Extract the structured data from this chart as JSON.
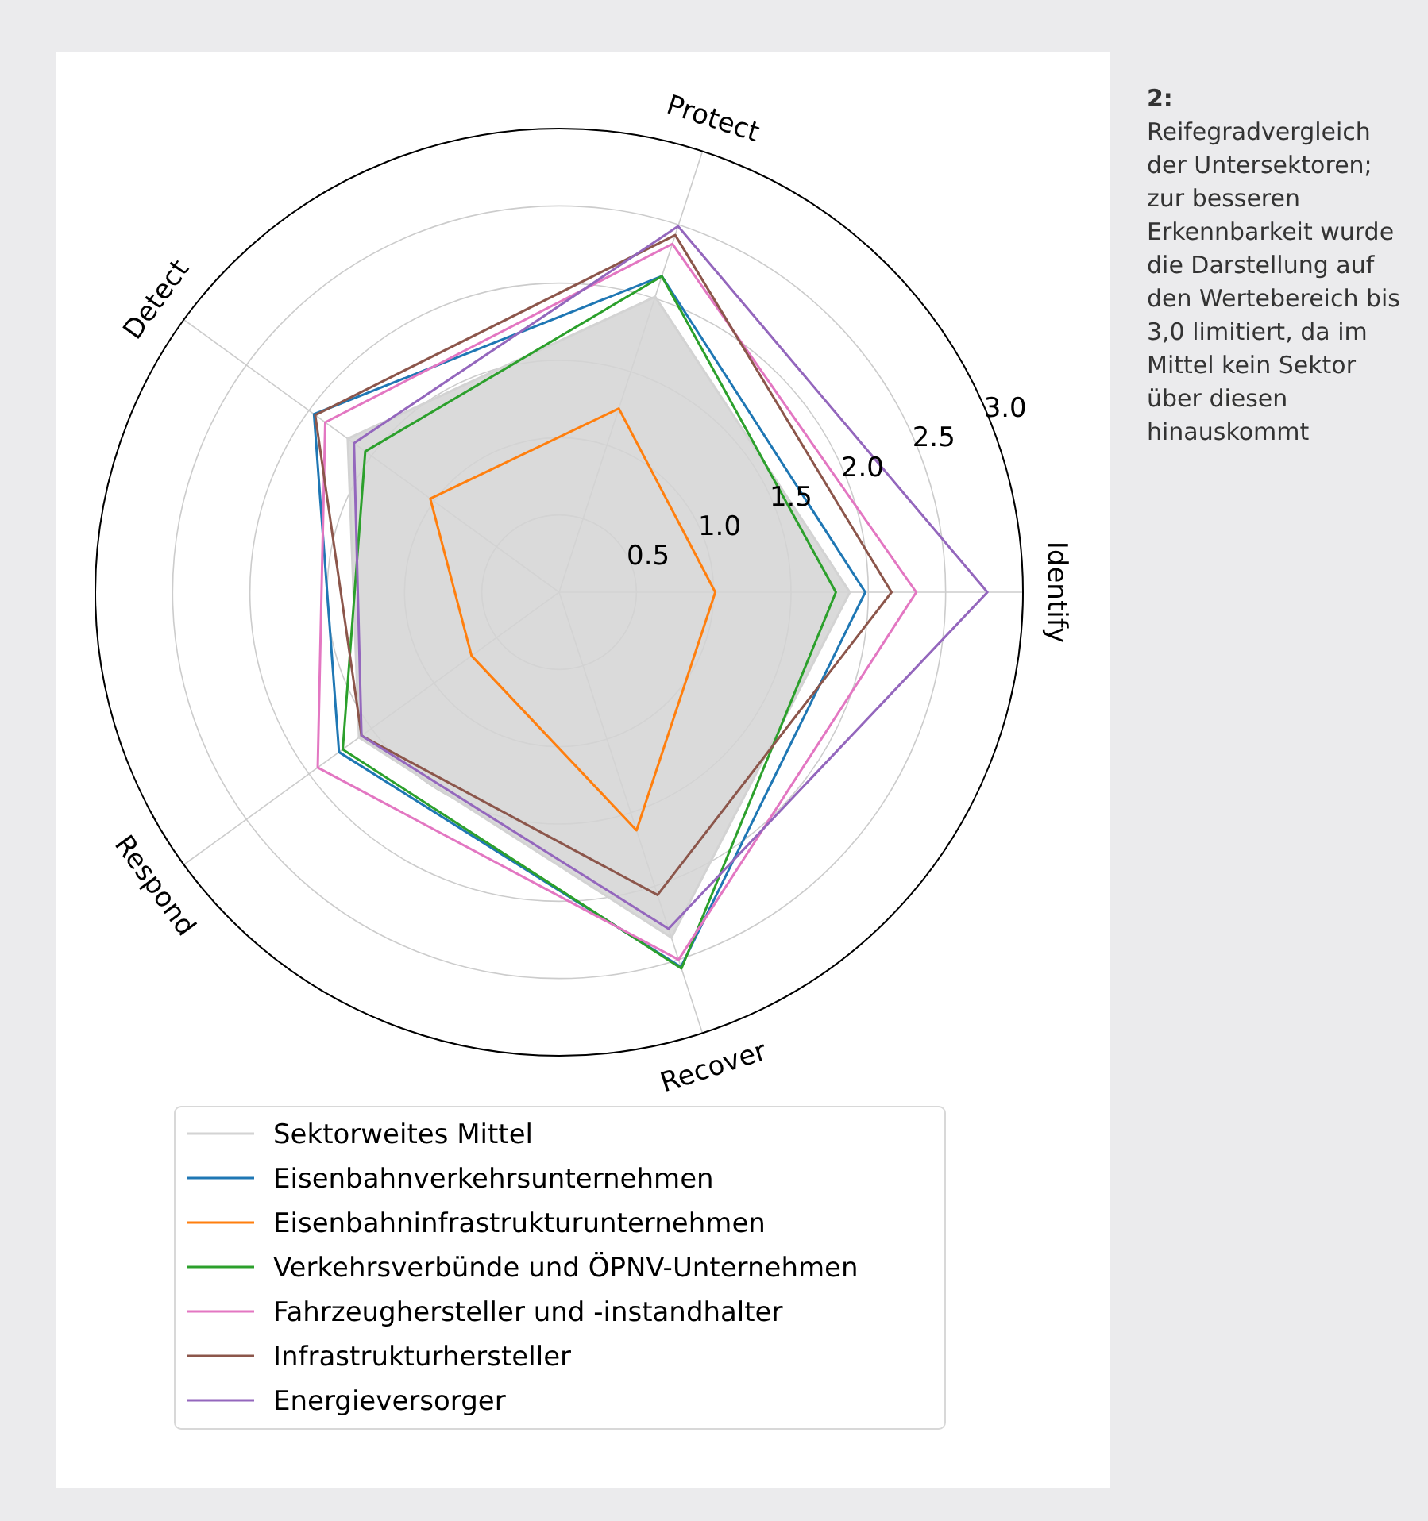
{
  "chart_data": {
    "type": "radar",
    "categories": [
      "Protect",
      "Identify",
      "Recover",
      "Respond",
      "Detect"
    ],
    "ylim": [
      0,
      3
    ],
    "yticks": [
      {
        "value": 0.5,
        "label": "0.5"
      },
      {
        "value": 1,
        "label": "1.0"
      },
      {
        "value": 1.5,
        "label": "1.5"
      },
      {
        "value": 2,
        "label": "2.0"
      },
      {
        "value": 2.5,
        "label": "2.5"
      },
      {
        "value": 3,
        "label": "3.0"
      }
    ],
    "grid": true,
    "legend": "bottom",
    "series": [
      {
        "name": "Sektorweites Mittel",
        "type": "area",
        "color": "#d3d3d3",
        "values": [
          2.01,
          1.88,
          2.35,
          1.6,
          1.69
        ]
      },
      {
        "name": "Eisenbahnverkehrsunternehmen",
        "color": "#1f77b4",
        "values": [
          2.15,
          1.98,
          2.55,
          1.76,
          1.96
        ]
      },
      {
        "name": "Eisenbahninfrastrukturunternehmen",
        "color": "#ff7f0e",
        "values": [
          1.25,
          1.01,
          1.62,
          0.7,
          1.03
        ]
      },
      {
        "name": "Verkehrsverbünde und ÖPNV-Unternehmen",
        "color": "#2ca02c",
        "values": [
          2.15,
          1.79,
          2.56,
          1.73,
          1.55
        ]
      },
      {
        "name": "Fahrzeughersteller und -instandhalter",
        "color": "#e377c2",
        "values": [
          2.37,
          2.31,
          2.5,
          1.93,
          1.87
        ]
      },
      {
        "name": "Infrastrukturhersteller",
        "color": "#8c564b",
        "values": [
          2.43,
          2.15,
          2.06,
          1.58,
          1.95
        ]
      },
      {
        "name": "Energieversorger",
        "color": "#9467bd",
        "values": [
          2.49,
          2.77,
          2.29,
          1.58,
          1.64
        ]
      }
    ],
    "annotations": [
      "2: Reifegradvergleich der Untersektoren; zur besseren Erkennbarkeit wurde die Darstellung auf den Wertebereich bis 3,0 limitiert, da im Mittel kein Sektor über diesen hinauskommt"
    ]
  }
}
